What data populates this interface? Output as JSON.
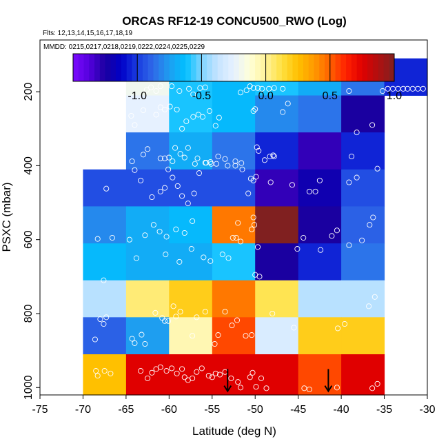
{
  "chart_data": {
    "type": "heatmap",
    "title": "ORCAS RF12-19 CONCU500_RWO (Log)",
    "subtitle_flights": "Flts: 12,13,14,15,16,17,18,19",
    "subtitle_dates": "MMDD: 0215,0217,0218,0219,0222,0224,0225,0229",
    "xlabel": "Latitude (deg N)",
    "ylabel": "PSXC (mbar)",
    "xlim": [
      -75,
      -30
    ],
    "ylim": [
      1020,
      60
    ],
    "xticks": [
      -75,
      -70,
      -65,
      -60,
      -55,
      -50,
      -45,
      -40,
      -35,
      -30
    ],
    "xtick_labels": [
      "-75",
      "-70",
      "-65",
      "-60",
      "-55",
      "-50",
      "-45",
      "-40",
      "-35",
      "-30"
    ],
    "yticks": [
      200,
      400,
      600,
      800,
      1000
    ],
    "ytick_labels": [
      "200",
      "400",
      "600",
      "800",
      "1000"
    ],
    "colorbar": {
      "range": [
        -1.5,
        1.0
      ],
      "ticks": [
        -1.0,
        -0.5,
        0.0,
        0.5,
        1.0
      ],
      "tick_labels": [
        "-1.0",
        "-0.5",
        "0.0",
        "0.5",
        "1.0"
      ],
      "colors": [
        "#7a0aff",
        "#5500dd",
        "#1a00a0",
        "#0000c8",
        "#1a3ce0",
        "#2f6ae8",
        "#1e9ef0",
        "#00c0ff",
        "#7fd4ff",
        "#c6e4ff",
        "#e6f1ff",
        "#ffffd8",
        "#fff29a",
        "#ffe040",
        "#ffc000",
        "#ff9a00",
        "#ff6200",
        "#ff2000",
        "#e00000",
        "#b01010",
        "#802020"
      ]
    },
    "grid_cells": {
      "lat_edges": [
        -70,
        -65,
        -60,
        -55,
        -50,
        -45,
        -40,
        -35,
        -30
      ],
      "p_bins": [
        [
          110,
          210
        ],
        [
          210,
          310
        ],
        [
          310,
          410
        ],
        [
          410,
          510
        ],
        [
          510,
          610
        ],
        [
          610,
          710
        ],
        [
          710,
          810
        ],
        [
          810,
          910
        ],
        [
          910,
          1010
        ]
      ],
      "values": [
        [
          null,
          -0.2,
          -0.6,
          -0.65,
          -0.6,
          -0.7,
          -0.85,
          -1.0
        ],
        [
          null,
          -0.25,
          -0.6,
          -0.65,
          -0.8,
          -0.85,
          -1.25,
          null
        ],
        [
          null,
          -0.85,
          -0.7,
          -0.85,
          -1.05,
          -1.3,
          -1.05,
          null
        ],
        [
          -0.95,
          -0.95,
          -0.95,
          -0.95,
          -1.3,
          -1.2,
          -0.95,
          null
        ],
        [
          -0.8,
          -0.7,
          -0.65,
          0.45,
          1.3,
          -1.25,
          -0.9,
          null
        ],
        [
          -0.65,
          -0.7,
          -0.7,
          -0.6,
          -1.25,
          -1.05,
          -0.85,
          null
        ],
        [
          -0.4,
          0.05,
          0.2,
          0.45,
          0.1,
          -0.4,
          -0.4,
          null
        ],
        [
          -0.9,
          -0.75,
          -0.05,
          0.55,
          -0.3,
          0.2,
          0.2,
          null
        ],
        [
          0.25,
          0.75,
          0.75,
          0.75,
          0.75,
          0.55,
          0.75,
          null
        ]
      ]
    },
    "observation_points": [
      [
        -68.5,
        955
      ],
      [
        -68.3,
        968
      ],
      [
        -67.5,
        955
      ],
      [
        -66.8,
        962
      ],
      [
        -63.3,
        955
      ],
      [
        -62.5,
        975
      ],
      [
        -62.0,
        960
      ],
      [
        -61.5,
        950
      ],
      [
        -61.0,
        945
      ],
      [
        -60.3,
        955
      ],
      [
        -59.7,
        948
      ],
      [
        -59.1,
        962
      ],
      [
        -58.5,
        950
      ],
      [
        -58.2,
        972
      ],
      [
        -57.8,
        980
      ],
      [
        -57.3,
        975
      ],
      [
        -56.8,
        958
      ],
      [
        -56.2,
        948
      ],
      [
        -55.4,
        968
      ],
      [
        -55.0,
        972
      ],
      [
        -54.6,
        962
      ],
      [
        -54.1,
        965
      ],
      [
        -53.5,
        958
      ],
      [
        -52.8,
        975
      ],
      [
        -52.0,
        985
      ],
      [
        -51.7,
        1000
      ],
      [
        -50.6,
        972
      ],
      [
        -50.3,
        960
      ],
      [
        -49.9,
        998
      ],
      [
        -49.3,
        975
      ],
      [
        -48.7,
        1002
      ],
      [
        -44.3,
        1002
      ],
      [
        -43.7,
        1005
      ],
      [
        -40.5,
        1000
      ],
      [
        -36.4,
        1002
      ],
      [
        -35.8,
        990
      ],
      [
        -68.6,
        870
      ],
      [
        -68.0,
        815
      ],
      [
        -67.3,
        810
      ],
      [
        -67.6,
        828
      ],
      [
        -64.3,
        868
      ],
      [
        -64.0,
        880
      ],
      [
        -63.2,
        857
      ],
      [
        -62.8,
        882
      ],
      [
        -61.6,
        798
      ],
      [
        -60.8,
        812
      ],
      [
        -60.5,
        820
      ],
      [
        -60.1,
        820
      ],
      [
        -59.5,
        780
      ],
      [
        -59.2,
        808
      ],
      [
        -58.7,
        795
      ],
      [
        -57.3,
        860
      ],
      [
        -56.8,
        810
      ],
      [
        -55.8,
        795
      ],
      [
        -54.7,
        882
      ],
      [
        -54.3,
        858
      ],
      [
        -53.5,
        795
      ],
      [
        -52.1,
        818
      ],
      [
        -52.7,
        832
      ],
      [
        -51.1,
        860
      ],
      [
        -50.4,
        858
      ],
      [
        -48.0,
        800
      ],
      [
        -45.5,
        838
      ],
      [
        -40.4,
        840
      ],
      [
        -39.6,
        828
      ],
      [
        -36.8,
        780
      ],
      [
        -36.1,
        755
      ],
      [
        -67.6,
        710
      ],
      [
        -63.8,
        650
      ],
      [
        -60.4,
        640
      ],
      [
        -58.8,
        660
      ],
      [
        -57.4,
        625
      ],
      [
        -56.0,
        648
      ],
      [
        -55.2,
        658
      ],
      [
        -53.8,
        640
      ],
      [
        -53.1,
        650
      ],
      [
        -52.2,
        595
      ],
      [
        -51.7,
        605
      ],
      [
        -50.4,
        572
      ],
      [
        -50.0,
        695
      ],
      [
        -49.5,
        700
      ],
      [
        -49.7,
        620
      ],
      [
        -45.1,
        625
      ],
      [
        -42.4,
        628
      ],
      [
        -41.1,
        590
      ],
      [
        -39.1,
        615
      ],
      [
        -37.6,
        602
      ],
      [
        -36.7,
        560
      ],
      [
        -68.3,
        598
      ],
      [
        -66.6,
        595
      ],
      [
        -64.6,
        600
      ],
      [
        -62.8,
        588
      ],
      [
        -61.8,
        560
      ],
      [
        -61.1,
        578
      ],
      [
        -60.3,
        592
      ],
      [
        -59.2,
        572
      ],
      [
        -58.2,
        582
      ],
      [
        -57.3,
        550
      ],
      [
        -52.6,
        595
      ],
      [
        -52.0,
        555
      ],
      [
        -50.2,
        540
      ],
      [
        -50.1,
        560
      ],
      [
        -44.4,
        595
      ],
      [
        -40.5,
        575
      ],
      [
        -36.3,
        540
      ],
      [
        -67.3,
        462
      ],
      [
        -64.0,
        412
      ],
      [
        -63.3,
        440
      ],
      [
        -62.0,
        485
      ],
      [
        -61.0,
        470
      ],
      [
        -60.5,
        460
      ],
      [
        -60.1,
        410
      ],
      [
        -59.6,
        432
      ],
      [
        -59.0,
        455
      ],
      [
        -58.5,
        482
      ],
      [
        -57.8,
        502
      ],
      [
        -57.1,
        475
      ],
      [
        -56.5,
        420
      ],
      [
        -55.8,
        392
      ],
      [
        -55.2,
        390
      ],
      [
        -54.5,
        395
      ],
      [
        -53.2,
        400
      ],
      [
        -52.3,
        400
      ],
      [
        -51.6,
        393
      ],
      [
        -50.8,
        475
      ],
      [
        -50.5,
        435
      ],
      [
        -50.2,
        440
      ],
      [
        -49.9,
        430
      ],
      [
        -48.2,
        445
      ],
      [
        -45.7,
        452
      ],
      [
        -43.7,
        470
      ],
      [
        -43.0,
        470
      ],
      [
        -42.5,
        440
      ],
      [
        -39.1,
        445
      ],
      [
        -38.2,
        432
      ],
      [
        -35.8,
        408
      ],
      [
        -64.3,
        388
      ],
      [
        -63.0,
        370
      ],
      [
        -62.5,
        355
      ],
      [
        -61.0,
        380
      ],
      [
        -60.5,
        380
      ],
      [
        -60.0,
        378
      ],
      [
        -59.6,
        388
      ],
      [
        -59.3,
        352
      ],
      [
        -58.7,
        368
      ],
      [
        -58.2,
        378
      ],
      [
        -57.8,
        352
      ],
      [
        -57.0,
        395
      ],
      [
        -56.7,
        380
      ],
      [
        -55.7,
        392
      ],
      [
        -55.1,
        395
      ],
      [
        -54.3,
        375
      ],
      [
        -53.5,
        382
      ],
      [
        -52.3,
        388
      ],
      [
        -51.5,
        410
      ],
      [
        -49.8,
        350
      ],
      [
        -49.6,
        360
      ],
      [
        -48.9,
        385
      ],
      [
        -48.3,
        375
      ],
      [
        -47.9,
        372
      ],
      [
        -47.8,
        375
      ],
      [
        -38.8,
        375
      ],
      [
        -38.2,
        310
      ],
      [
        -36.4,
        290
      ],
      [
        -64.4,
        265
      ],
      [
        -64.0,
        290
      ],
      [
        -63.0,
        250
      ],
      [
        -61.5,
        262
      ],
      [
        -61.0,
        242
      ],
      [
        -60.5,
        248
      ],
      [
        -59.9,
        240
      ],
      [
        -59.1,
        248
      ],
      [
        -58.5,
        300
      ],
      [
        -58.0,
        280
      ],
      [
        -57.2,
        268
      ],
      [
        -56.6,
        262
      ],
      [
        -56.1,
        268
      ],
      [
        -55.3,
        252
      ],
      [
        -54.6,
        292
      ],
      [
        -54.2,
        270
      ],
      [
        -50.2,
        252
      ],
      [
        -50.0,
        247
      ],
      [
        -46.8,
        255
      ],
      [
        -46.2,
        232
      ],
      [
        -62.6,
        195
      ],
      [
        -62.1,
        188
      ],
      [
        -61.5,
        198
      ],
      [
        -61.0,
        185
      ],
      [
        -59.7,
        185
      ],
      [
        -58.8,
        198
      ],
      [
        -57.7,
        192
      ],
      [
        -57.2,
        207
      ],
      [
        -56.4,
        190
      ],
      [
        -55.8,
        188
      ],
      [
        -51.7,
        202
      ],
      [
        -51.0,
        196
      ],
      [
        -50.6,
        185
      ],
      [
        -50.2,
        190
      ],
      [
        -49.7,
        190
      ],
      [
        -49.2,
        192
      ],
      [
        -48.4,
        192
      ],
      [
        -47.8,
        190
      ],
      [
        -46.8,
        192
      ],
      [
        -39.1,
        198
      ],
      [
        -35.2,
        198
      ],
      [
        -34.6,
        192
      ],
      [
        -34.0,
        192
      ],
      [
        -33.4,
        192
      ],
      [
        -32.8,
        192
      ],
      [
        -32.3,
        192
      ],
      [
        -31.7,
        192
      ],
      [
        -31.1,
        192
      ],
      [
        -30.5,
        192
      ]
    ],
    "arrows": [
      {
        "lat": -53.2,
        "p_from": 950,
        "p_to": 1010
      },
      {
        "lat": -41.5,
        "p_from": 950,
        "p_to": 1010
      }
    ]
  }
}
